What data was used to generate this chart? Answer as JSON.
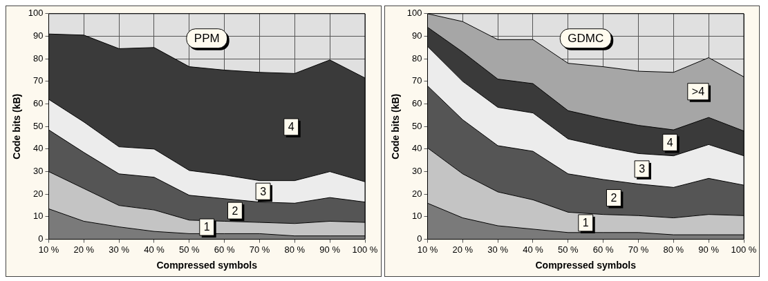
{
  "chart_data": [
    {
      "type": "area",
      "title": "PPM",
      "xlabel": "Compressed symbols",
      "ylabel": "Code bits (kB)",
      "stacked": true,
      "categories": [
        "10 %",
        "20 %",
        "30 %",
        "40 %",
        "50 %",
        "60 %",
        "70 %",
        "80 %",
        "90 %",
        "100 %"
      ],
      "ylim": [
        0,
        100
      ],
      "yticks": [
        0,
        10,
        20,
        30,
        40,
        50,
        60,
        70,
        80,
        90,
        100
      ],
      "grid": true,
      "legend": false,
      "series": [
        {
          "color": "#7a7a7a",
          "values": [
            13.5,
            8,
            5.5,
            3.5,
            2.5,
            2.5,
            2.5,
            1.5,
            1.5,
            1.5
          ]
        },
        {
          "name": "1",
          "color": "#c4c4c4",
          "values": [
            16.5,
            14.5,
            9.5,
            9.5,
            6,
            5.5,
            5,
            5.5,
            6.5,
            6
          ]
        },
        {
          "name": "2",
          "color": "#555555",
          "values": [
            18.5,
            16,
            14,
            14.5,
            11,
            10,
            9,
            9,
            10.5,
            9
          ]
        },
        {
          "name": "3",
          "color": "#ececec",
          "values": [
            13.5,
            13.5,
            12,
            12.5,
            11,
            10.5,
            9.5,
            10,
            11.5,
            9
          ]
        },
        {
          "name": "4",
          "color": "#3a3a3a",
          "values": [
            29,
            38.5,
            43.5,
            45,
            46,
            46.5,
            48,
            47.5,
            49.5,
            46
          ]
        }
      ]
    },
    {
      "type": "area",
      "title": "GDMC",
      "xlabel": "Compressed symbols",
      "ylabel": "Code bits (kB)",
      "stacked": true,
      "categories": [
        "10 %",
        "20 %",
        "30 %",
        "40 %",
        "50 %",
        "60 %",
        "70 %",
        "80 %",
        "90 %",
        "100 %"
      ],
      "ylim": [
        0,
        100
      ],
      "yticks": [
        0,
        10,
        20,
        30,
        40,
        50,
        60,
        70,
        80,
        90,
        100
      ],
      "grid": true,
      "legend": false,
      "series": [
        {
          "color": "#7a7a7a",
          "values": [
            16,
            9.5,
            6,
            4.5,
            3,
            3,
            3,
            2,
            2,
            2
          ]
        },
        {
          "name": "1",
          "color": "#c4c4c4",
          "values": [
            24.5,
            19.5,
            15,
            13,
            9,
            8,
            7.5,
            7.5,
            9,
            8.5
          ]
        },
        {
          "name": "2",
          "color": "#555555",
          "values": [
            27.5,
            24,
            20.5,
            21.5,
            17,
            15.5,
            14,
            13.5,
            16,
            13.5
          ]
        },
        {
          "name": "3",
          "color": "#ececec",
          "values": [
            17.5,
            17,
            17,
            17,
            15.5,
            14.5,
            13.5,
            14,
            15,
            13
          ]
        },
        {
          "name": "4",
          "color": "#3a3a3a",
          "values": [
            8.5,
            13,
            12.5,
            13,
            12.5,
            12.5,
            12.5,
            11.5,
            12,
            11
          ]
        },
        {
          "name": ">4",
          "color": "#a6a6a6",
          "values": [
            6,
            13.5,
            17.5,
            19.5,
            21,
            23,
            24,
            25.5,
            26.5,
            24
          ]
        }
      ]
    }
  ]
}
